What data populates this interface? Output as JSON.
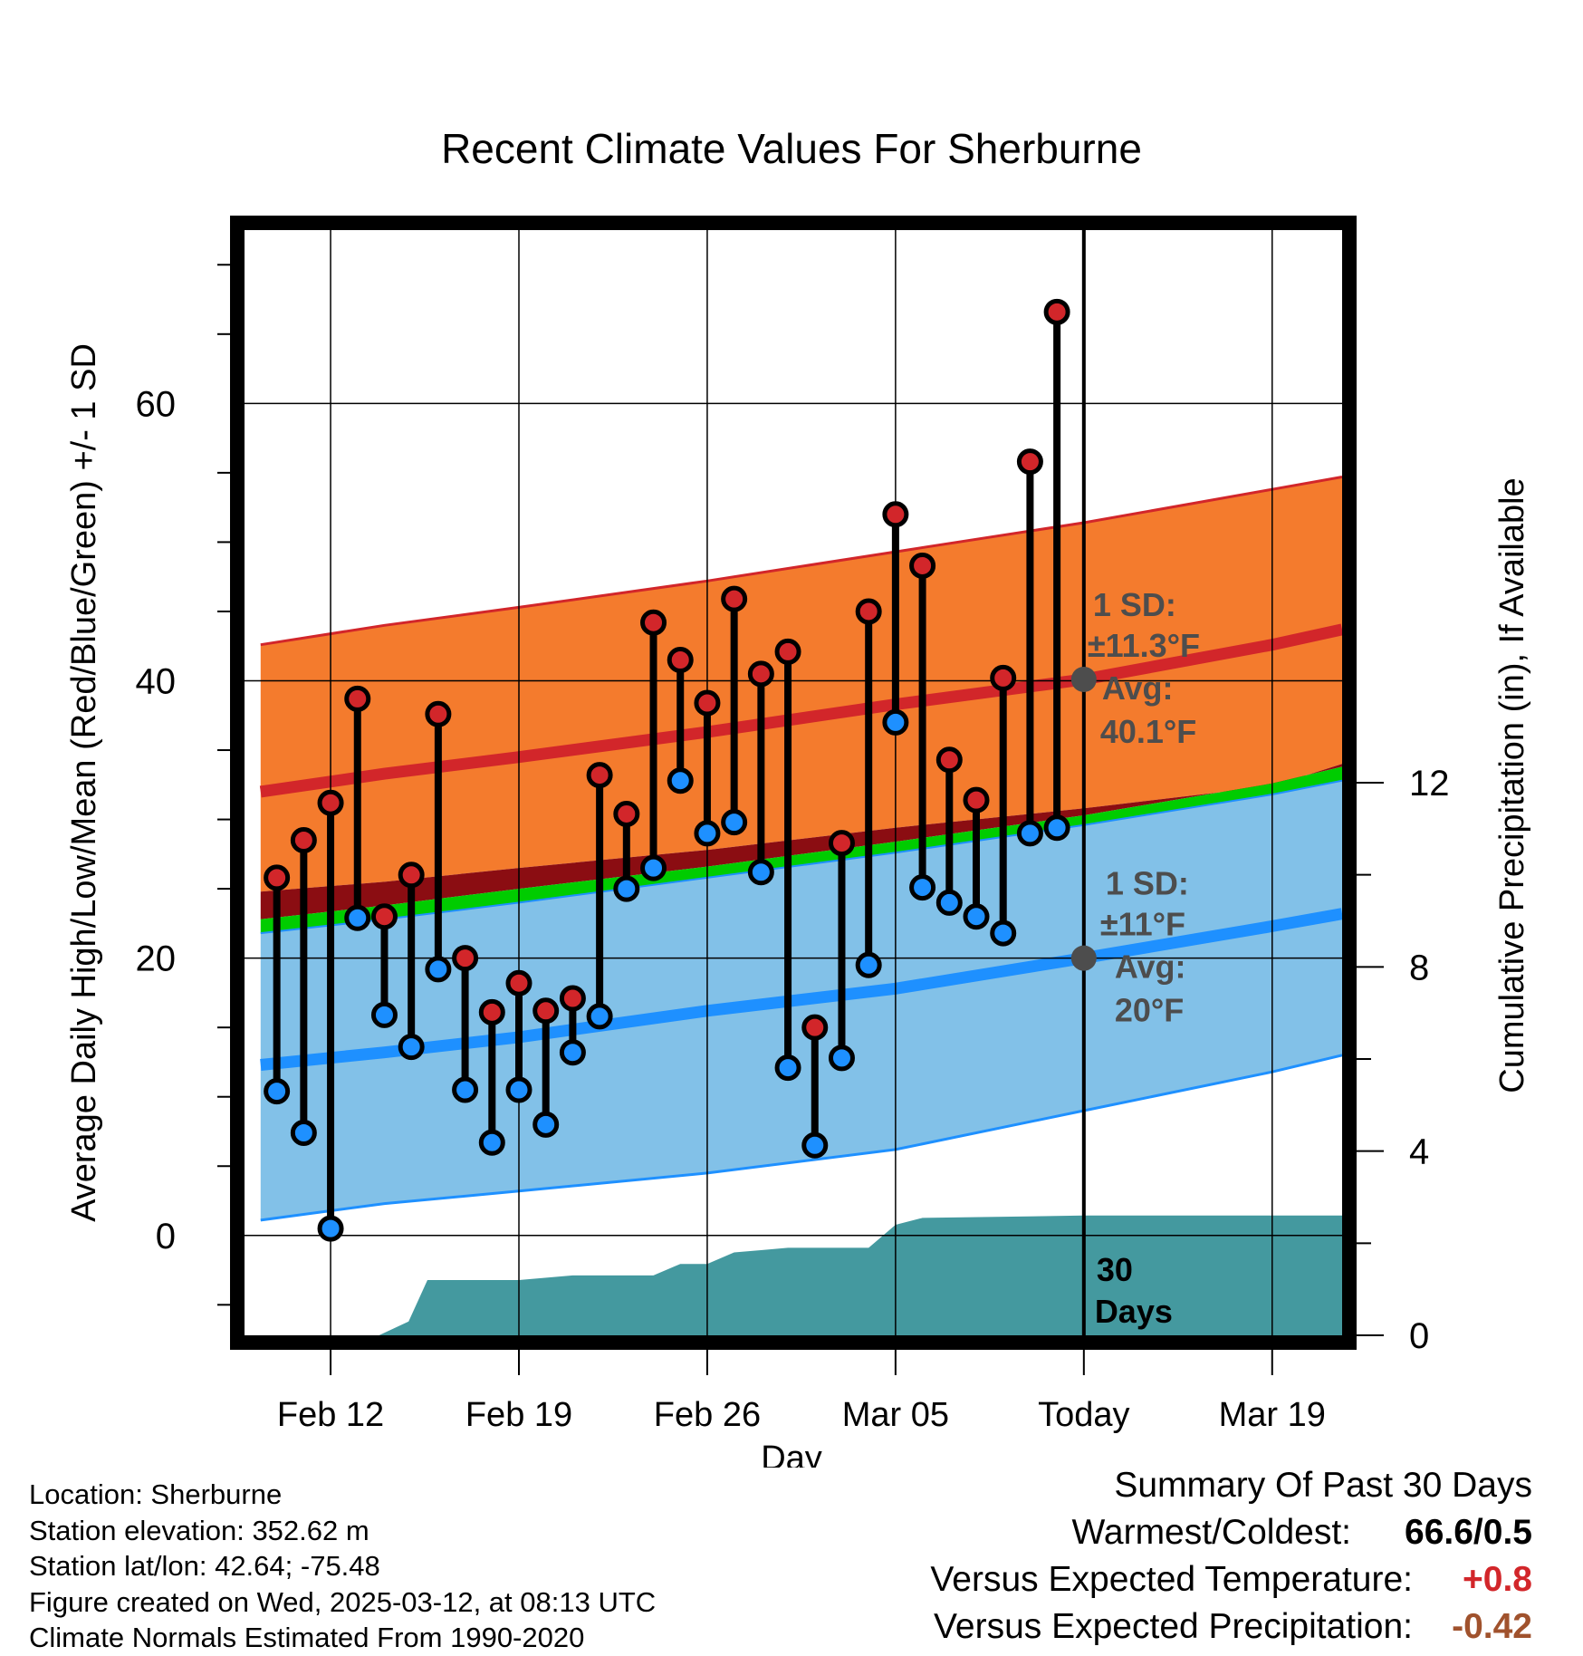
{
  "title": "Recent Climate Values For Sherburne",
  "chart_data": {
    "type": "line",
    "title": "Recent Climate Values For Sherburne",
    "xlabel": "Day",
    "ylabel": "Average Daily High/Low/Mean (Red/Blue/Green) +/- 1 SD",
    "y2label": "Cumulative Precipitation (in), If Available",
    "ylim": [
      -7.2,
      72.5
    ],
    "y2lim": [
      0,
      24
    ],
    "xlim": [
      -3.2,
      37.6
    ],
    "x_ticks": [
      {
        "day": 0,
        "label": "Feb 12"
      },
      {
        "day": 7,
        "label": "Feb 19"
      },
      {
        "day": 14,
        "label": "Feb 26"
      },
      {
        "day": 21,
        "label": "Mar 05"
      },
      {
        "day": 28,
        "label": "Today"
      },
      {
        "day": 35,
        "label": "Mar 19"
      }
    ],
    "y_ticks": [
      "0",
      "20",
      "40",
      "60"
    ],
    "y2_ticks": [
      "0",
      "4",
      "8",
      "12"
    ],
    "normals": {
      "x": [
        -2.6,
        2,
        7,
        14,
        21,
        28,
        35,
        37.6
      ],
      "high_plus_sd": [
        42.6,
        44.0,
        45.3,
        47.2,
        49.3,
        51.4,
        53.8,
        54.7
      ],
      "high_avg": [
        32.0,
        33.3,
        34.5,
        36.3,
        38.3,
        40.1,
        42.6,
        43.7
      ],
      "high_minus_sd": [
        24.8,
        25.5,
        26.5,
        27.8,
        29.4,
        30.8,
        32.4,
        34.0
      ],
      "mean_avg": [
        22.8,
        23.8,
        25.0,
        26.6,
        28.4,
        30.3,
        32.6,
        33.8
      ],
      "low_plus_sd": [
        21.8,
        22.8,
        24.0,
        25.8,
        27.6,
        29.6,
        31.8,
        32.8
      ],
      "low_avg": [
        12.3,
        13.2,
        14.3,
        16.2,
        17.8,
        20.0,
        22.3,
        23.2
      ],
      "low_minus_sd": [
        1.1,
        2.3,
        3.2,
        4.5,
        6.2,
        9.0,
        11.8,
        13.0
      ]
    },
    "series": [
      {
        "name": "High",
        "x": [
          -2,
          -1,
          0,
          1,
          2,
          3,
          4,
          5,
          6,
          7,
          8,
          9,
          10,
          11,
          12,
          13,
          14,
          15,
          16,
          17,
          18,
          19,
          20,
          21,
          22,
          23,
          24,
          25,
          26,
          27
        ],
        "values": [
          25.8,
          28.5,
          31.2,
          38.7,
          23.0,
          26.0,
          37.6,
          20.0,
          16.1,
          18.2,
          16.2,
          17.1,
          33.2,
          30.4,
          44.2,
          41.5,
          38.4,
          45.9,
          40.5,
          42.1,
          15.0,
          28.3,
          45.0,
          52.0,
          48.3,
          34.3,
          31.4,
          40.2,
          55.8,
          66.6
        ]
      },
      {
        "name": "Low",
        "x": [
          -2,
          -1,
          0,
          1,
          2,
          3,
          4,
          5,
          6,
          7,
          8,
          9,
          10,
          11,
          12,
          13,
          14,
          15,
          16,
          17,
          18,
          19,
          20,
          21,
          22,
          23,
          24,
          25,
          26,
          27
        ],
        "values": [
          10.4,
          7.4,
          0.5,
          22.9,
          15.9,
          13.6,
          19.2,
          10.5,
          6.7,
          10.5,
          8.0,
          13.2,
          15.8,
          25.0,
          26.5,
          32.8,
          29.0,
          29.8,
          26.2,
          12.1,
          6.5,
          12.8,
          19.5,
          37.0,
          25.1,
          24.0,
          23.0,
          21.8,
          29.0,
          29.4
        ]
      }
    ],
    "precip_cumulative": {
      "x": [
        -2.6,
        -1,
        1.8,
        2.9,
        3.6,
        7,
        9,
        12,
        13,
        14,
        15,
        16,
        17,
        19,
        20,
        21,
        22,
        28,
        37.6
      ],
      "values": [
        0,
        0,
        0,
        0.3,
        1.2,
        1.2,
        1.3,
        1.3,
        1.55,
        1.55,
        1.8,
        1.85,
        1.9,
        1.9,
        1.9,
        2.4,
        2.55,
        2.6,
        2.6
      ]
    },
    "annotations": {
      "high": {
        "sd_label": "1 SD:",
        "sd_value": "±11.3°F",
        "avg_label": "Avg:",
        "avg_value": "40.1°F",
        "avg": 40.1
      },
      "low": {
        "sd_label": "1 SD:",
        "sd_value": "±11°F",
        "avg_label": "Avg:",
        "avg_value": "20°F",
        "avg": 20
      },
      "window": "30\nDays"
    },
    "colors": {
      "high_band": "#f47b2d",
      "high_line": "#d2262a",
      "low_band": "#82c1e8",
      "low_line": "#1e90ff",
      "mean_band": "#00cc00",
      "mean_dark": "#8b0d12",
      "precip": "#44999f",
      "high_dot": "#d2262a",
      "low_dot": "#1e90ff",
      "annotation_text": "#4d4d4d"
    }
  },
  "meta": {
    "location": "Location: Sherburne",
    "elevation": "Station elevation: 352.62 m",
    "latlon": "Station lat/lon: 42.64; -75.48",
    "created": "Figure created on Wed, 2025-03-12, at 08:13 UTC",
    "normals": "Climate Normals Estimated From 1990-2020"
  },
  "summary": {
    "heading": "Summary Of Past 30 Days",
    "warmest_label": "Warmest/Coldest:",
    "warmest_value": "66.6/0.5",
    "temp_label": "Versus Expected Temperature:",
    "temp_value": "+0.8",
    "temp_color": "#d2262a",
    "precip_label": "Versus Expected Precipitation:",
    "precip_value": "-0.42",
    "precip_color": "#a0522d"
  }
}
